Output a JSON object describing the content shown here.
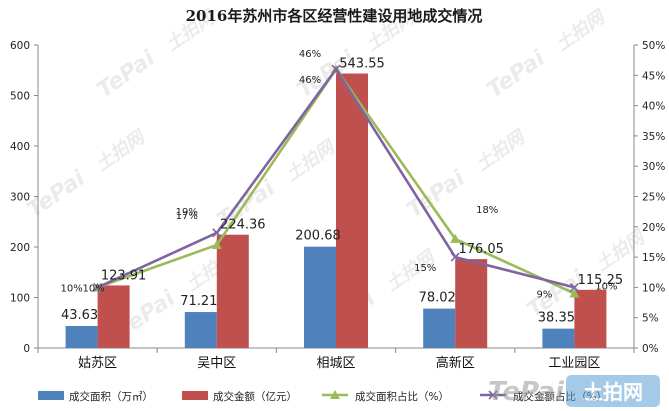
{
  "chart_data": {
    "type": "bar",
    "title": "2016年苏州市各区经营性建设用地成交情况",
    "categories": [
      "姑苏区",
      "吴中区",
      "相城区",
      "高新区",
      "工业园区"
    ],
    "ylim": [
      0,
      600
    ],
    "y_ticks": [
      "0",
      "100",
      "200",
      "300",
      "400",
      "500",
      "600"
    ],
    "y2lim": [
      0,
      50
    ],
    "y2_ticks": [
      "0%",
      "5%",
      "10%",
      "15%",
      "20%",
      "25%",
      "30%",
      "35%",
      "40%",
      "45%",
      "50%"
    ],
    "grid": false,
    "legend": "bottom",
    "bar_series": [
      {
        "name": "成交面积（万㎡）",
        "color": "#4f81bd",
        "values": [
          43.63,
          71.21,
          200.68,
          78.02,
          38.35
        ],
        "labels": [
          "43.63",
          "71.21",
          "200.68",
          "78.02",
          "38.35"
        ]
      },
      {
        "name": "成交金额（亿元）",
        "color": "#c0504d",
        "values": [
          123.91,
          224.36,
          543.55,
          176.05,
          115.25
        ],
        "labels": [
          "123.91",
          "224.36",
          "543.55",
          "176.05",
          "115.25"
        ]
      }
    ],
    "line_series": [
      {
        "name": "成交面积占比（%）",
        "color": "#9bbb59",
        "marker": "triangle",
        "values": [
          10,
          17,
          46,
          18,
          9
        ],
        "labels": [
          "10%",
          "17%",
          "46%",
          "18%",
          "9%"
        ]
      },
      {
        "name": "成交金额占比（%）",
        "color": "#8064a2",
        "marker": "x",
        "values": [
          10,
          19,
          46,
          15,
          10
        ],
        "labels": [
          "10%",
          "19%",
          "46%",
          "15%",
          "10%"
        ]
      }
    ]
  },
  "watermark": {
    "brand": "TePai",
    "cn": "土拍网"
  }
}
